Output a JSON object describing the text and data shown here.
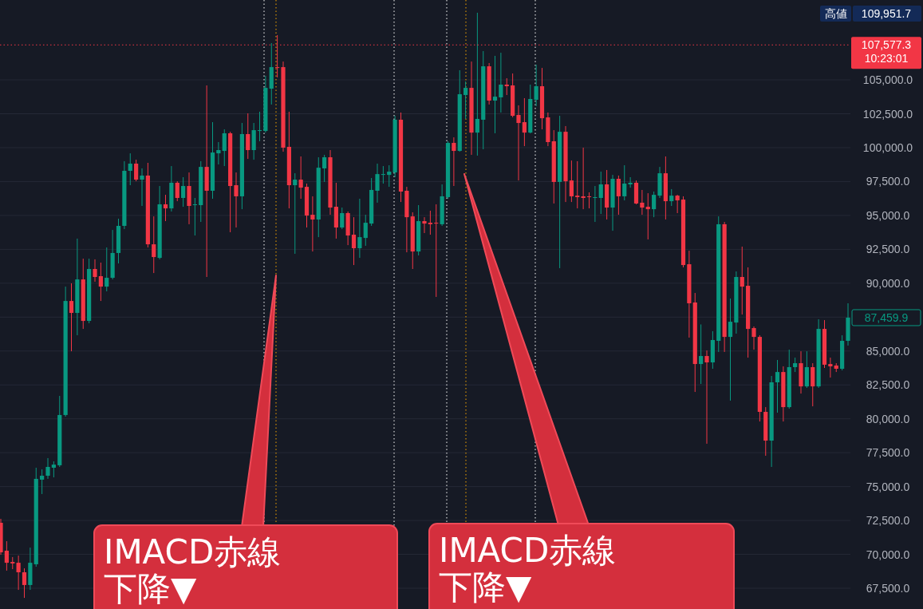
{
  "chart_data": {
    "type": "candlestick",
    "categories": [
      null,
      null,
      null,
      null,
      null,
      null,
      null,
      null,
      null,
      null,
      null,
      null,
      null,
      null,
      null,
      null,
      null,
      null,
      null,
      null,
      null,
      null,
      null,
      null,
      null,
      null,
      null,
      null,
      null,
      null,
      null,
      null,
      null,
      null,
      null,
      null,
      null,
      null,
      null,
      null,
      null,
      null,
      null,
      null,
      null,
      null,
      null,
      null,
      null,
      null,
      null,
      null,
      null,
      null,
      null,
      null,
      null,
      null,
      null,
      null,
      null,
      null,
      null,
      null,
      null,
      null,
      null,
      null,
      null,
      null,
      null,
      null,
      null,
      null,
      null,
      null,
      null,
      null,
      null,
      null,
      null,
      null,
      null,
      null,
      null,
      null,
      null,
      null,
      null,
      null,
      null,
      null,
      null,
      null,
      null,
      null,
      null,
      null,
      null,
      null,
      null,
      null,
      null,
      null,
      null,
      null,
      null,
      null,
      null,
      null,
      null,
      null,
      null,
      null,
      null,
      null,
      null,
      null,
      null,
      null,
      null,
      null,
      null,
      null,
      null,
      null,
      null,
      null,
      null,
      null,
      null,
      null,
      null,
      null,
      null,
      null,
      null,
      null,
      null,
      null,
      null,
      null,
      null,
      null,
      null
    ],
    "ohlc": [
      [
        72330,
        72620,
        69970,
        70150
      ],
      [
        70270,
        70970,
        68800,
        69380
      ],
      [
        69440,
        69800,
        68910,
        69330
      ],
      [
        69380,
        69910,
        67380,
        68680
      ],
      [
        68680,
        68970,
        66790,
        67740
      ],
      [
        67740,
        70500,
        67380,
        69380
      ],
      [
        69270,
        76390,
        69090,
        75570
      ],
      [
        75510,
        76270,
        74450,
        75800
      ],
      [
        75800,
        77100,
        75570,
        76450
      ],
      [
        76390,
        76860,
        75680,
        76620
      ],
      [
        76570,
        81690,
        76450,
        80280
      ],
      [
        80280,
        89750,
        80160,
        88690
      ],
      [
        88690,
        89990,
        84980,
        87810
      ],
      [
        87810,
        93290,
        86160,
        90280
      ],
      [
        90280,
        91810,
        86630,
        87220
      ],
      [
        87220,
        91810,
        87050,
        91050
      ],
      [
        91050,
        91760,
        90110,
        90460
      ],
      [
        90520,
        91520,
        88690,
        89750
      ],
      [
        89750,
        92640,
        89400,
        90400
      ],
      [
        90400,
        93930,
        90280,
        92230
      ],
      [
        92230,
        94760,
        91460,
        94230
      ],
      [
        94230,
        99000,
        93990,
        98290
      ],
      [
        98290,
        99580,
        97230,
        98820
      ],
      [
        98820,
        99110,
        97520,
        97640
      ],
      [
        97640,
        98470,
        95700,
        97940
      ],
      [
        97940,
        98880,
        92640,
        92870
      ],
      [
        92870,
        94930,
        90750,
        91930
      ],
      [
        91870,
        97170,
        91760,
        95820
      ],
      [
        95820,
        96520,
        94580,
        95520
      ],
      [
        95520,
        98640,
        95290,
        97410
      ],
      [
        97410,
        97520,
        96050,
        96290
      ],
      [
        96290,
        97820,
        95640,
        97170
      ],
      [
        97170,
        98170,
        94350,
        95700
      ],
      [
        95760,
        96290,
        93520,
        95820
      ],
      [
        95760,
        99000,
        94520,
        98580
      ],
      [
        98580,
        104590,
        90460,
        96820
      ],
      [
        96820,
        101880,
        96230,
        99640
      ],
      [
        99580,
        100410,
        98760,
        99820
      ],
      [
        99760,
        101350,
        98640,
        101060
      ],
      [
        101060,
        101170,
        93760,
        97170
      ],
      [
        97230,
        98170,
        94110,
        96410
      ],
      [
        96410,
        101820,
        95460,
        101000
      ],
      [
        101000,
        102530,
        99170,
        99820
      ],
      [
        99820,
        101820,
        99110,
        101290
      ],
      [
        101230,
        102650,
        100470,
        101290
      ],
      [
        101230,
        105300,
        101110,
        104410
      ],
      [
        104350,
        107710,
        103180,
        105940
      ],
      [
        105940,
        108300,
        105180,
        105880
      ],
      [
        105940,
        106350,
        99700,
        100000
      ],
      [
        100060,
        102650,
        95520,
        97230
      ],
      [
        97230,
        98110,
        92170,
        97640
      ],
      [
        97640,
        99350,
        96230,
        97050
      ],
      [
        97110,
        97350,
        94110,
        94990
      ],
      [
        95050,
        96410,
        92340,
        94700
      ],
      [
        94700,
        99290,
        93400,
        98520
      ],
      [
        98470,
        99470,
        97470,
        99290
      ],
      [
        99290,
        99820,
        95050,
        95580
      ],
      [
        95640,
        97410,
        93290,
        94110
      ],
      [
        94110,
        95580,
        93990,
        95170
      ],
      [
        95170,
        95290,
        92810,
        93520
      ],
      [
        93580,
        94870,
        91340,
        92580
      ],
      [
        92580,
        96230,
        91870,
        93400
      ],
      [
        93340,
        95050,
        92760,
        94460
      ],
      [
        94400,
        97760,
        94230,
        96880
      ],
      [
        96820,
        98820,
        95940,
        98050
      ],
      [
        97990,
        98640,
        97350,
        98050
      ],
      [
        97990,
        98700,
        97110,
        98230
      ],
      [
        98170,
        102350,
        97820,
        102060
      ],
      [
        102060,
        102590,
        95990,
        96760
      ],
      [
        96820,
        97110,
        92280,
        94870
      ],
      [
        94930,
        95230,
        91050,
        92340
      ],
      [
        92340,
        95760,
        92050,
        94580
      ],
      [
        94580,
        94870,
        93700,
        94400
      ],
      [
        94460,
        95350,
        93580,
        94350
      ],
      [
        94460,
        95820,
        88990,
        94400
      ],
      [
        94350,
        97290,
        94230,
        96410
      ],
      [
        96350,
        100470,
        96230,
        100350
      ],
      [
        100350,
        100760,
        97170,
        99760
      ],
      [
        99760,
        105710,
        99700,
        103940
      ],
      [
        103880,
        104880,
        102120,
        104410
      ],
      [
        104410,
        106350,
        99470,
        101110
      ],
      [
        101110,
        109950,
        99410,
        102120
      ],
      [
        102060,
        107120,
        99880,
        106000
      ],
      [
        106000,
        106240,
        103180,
        103470
      ],
      [
        103470,
        106770,
        101060,
        103760
      ],
      [
        103710,
        107000,
        102590,
        104650
      ],
      [
        104650,
        105120,
        103880,
        104530
      ],
      [
        104590,
        105470,
        102240,
        102350
      ],
      [
        102410,
        103120,
        97580,
        101820
      ],
      [
        101880,
        103650,
        100110,
        101110
      ],
      [
        101110,
        104650,
        101050,
        103590
      ],
      [
        103530,
        106120,
        103060,
        104530
      ],
      [
        104530,
        105880,
        101350,
        102170
      ],
      [
        102230,
        102590,
        100110,
        100410
      ],
      [
        100470,
        101290,
        95880,
        97470
      ],
      [
        97470,
        102350,
        91110,
        101170
      ],
      [
        101170,
        101590,
        95990,
        97520
      ],
      [
        97580,
        99050,
        95990,
        96410
      ],
      [
        96460,
        99000,
        95520,
        96350
      ],
      [
        96410,
        100000,
        95460,
        96290
      ],
      [
        96410,
        96700,
        95520,
        96350
      ],
      [
        96290,
        97170,
        94520,
        96350
      ],
      [
        96290,
        98230,
        95110,
        97290
      ],
      [
        97290,
        98350,
        94700,
        95580
      ],
      [
        95580,
        97990,
        93870,
        97700
      ],
      [
        97700,
        97940,
        95050,
        96410
      ],
      [
        96410,
        98700,
        96110,
        97350
      ],
      [
        97290,
        97820,
        97050,
        97410
      ],
      [
        97410,
        97580,
        95820,
        95880
      ],
      [
        95940,
        96880,
        95050,
        95580
      ],
      [
        95640,
        96640,
        93230,
        95460
      ],
      [
        95460,
        96760,
        94870,
        96520
      ],
      [
        96460,
        98580,
        96290,
        98110
      ],
      [
        98110,
        99350,
        94700,
        96050
      ],
      [
        96050,
        96940,
        95700,
        96460
      ],
      [
        96460,
        96520,
        95170,
        96110
      ],
      [
        96170,
        96410,
        91170,
        91340
      ],
      [
        91400,
        92400,
        85990,
        88520
      ],
      [
        88580,
        89280,
        81980,
        84040
      ],
      [
        84040,
        86960,
        82570,
        84630
      ],
      [
        84630,
        85040,
        78160,
        84160
      ],
      [
        84160,
        86460,
        83690,
        85810
      ],
      [
        85750,
        94930,
        84930,
        94350
      ],
      [
        94350,
        94520,
        84930,
        86040
      ],
      [
        86040,
        88870,
        81340,
        87160
      ],
      [
        87100,
        90870,
        86280,
        90460
      ],
      [
        90460,
        92700,
        87690,
        89750
      ],
      [
        89810,
        91170,
        84510,
        86630
      ],
      [
        86690,
        86810,
        85100,
        86040
      ],
      [
        86040,
        86160,
        79800,
        80510
      ],
      [
        80510,
        80860,
        77270,
        78390
      ],
      [
        78390,
        83160,
        76450,
        82690
      ],
      [
        82690,
        84340,
        80450,
        83450
      ],
      [
        83450,
        83870,
        79800,
        80860
      ],
      [
        80860,
        85100,
        80750,
        83810
      ],
      [
        83810,
        84510,
        83450,
        84100
      ],
      [
        84100,
        84980,
        81860,
        82390
      ],
      [
        82390,
        84980,
        82280,
        83810
      ],
      [
        83810,
        84100,
        80920,
        82390
      ],
      [
        82390,
        87340,
        82280,
        86630
      ],
      [
        86630,
        87280,
        83750,
        83990
      ],
      [
        84040,
        84510,
        83040,
        83870
      ],
      [
        83930,
        84100,
        83450,
        83690
      ],
      [
        83690,
        86160,
        83570,
        85750
      ],
      [
        85750,
        88520,
        85400,
        87459.9
      ]
    ],
    "ylim": [
      65970,
      110890
    ],
    "yticks": [
      {
        "value": 67500,
        "label": "67,500.0"
      },
      {
        "value": 70000,
        "label": "70,000.0"
      },
      {
        "value": 72500,
        "label": "72,500.0"
      },
      {
        "value": 75000,
        "label": "75,000.0"
      },
      {
        "value": 77500,
        "label": "77,500.0"
      },
      {
        "value": 80000,
        "label": "80,000.0"
      },
      {
        "value": 82500,
        "label": "82,500.0"
      },
      {
        "value": 85000,
        "label": "85,000.0"
      },
      {
        "value": 87500,
        "label": null
      },
      {
        "value": 90000,
        "label": "90,000.0"
      },
      {
        "value": 92500,
        "label": "92,500.0"
      },
      {
        "value": 95000,
        "label": "95,000.0"
      },
      {
        "value": 97500,
        "label": "97,500.0"
      },
      {
        "value": 100000,
        "label": "100,000.0"
      },
      {
        "value": 102500,
        "label": "102,500.0"
      },
      {
        "value": 105000,
        "label": "105,000.0"
      }
    ],
    "grid": "y",
    "tick_labels": "y",
    "ref_lines": [
      {
        "axis": "y",
        "value": 107577.3,
        "label": "107,577.3\n10:23:01",
        "color": "#f23645",
        "line_style": "dotted"
      }
    ],
    "annotations": [
      "高値",
      "109,951.7",
      "87,459.9",
      "IMACD赤線下降▼",
      "IMACD赤線下降▼"
    ]
  }
}
